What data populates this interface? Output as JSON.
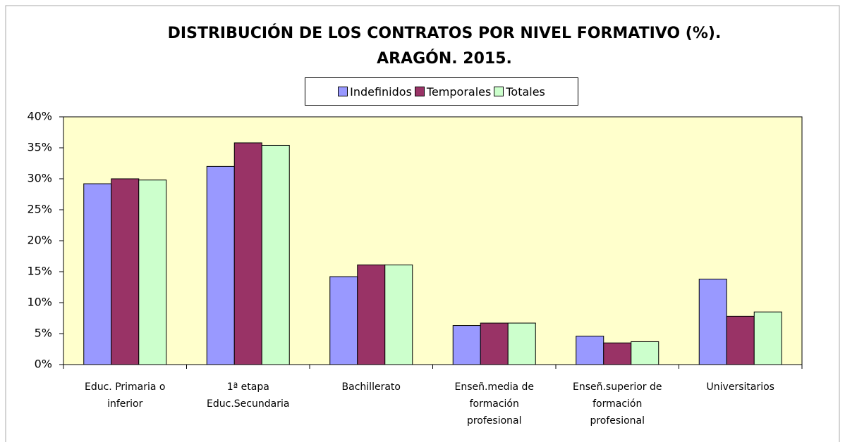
{
  "chart_data": {
    "type": "bar",
    "title": [
      "DISTRIBUCIÓN DE LOS CONTRATOS POR NIVEL FORMATIVO (%).",
      "ARAGÓN. 2015."
    ],
    "categories": [
      "Educ. Primaria o inferior",
      "1ª etapa Educ.Secundaria",
      "Bachillerato",
      "Enseñ.media de formación profesional",
      "Enseñ.superior de formación profesional",
      "Universitarios"
    ],
    "series": [
      {
        "name": "Indefinidos",
        "color": "#9999ff",
        "values": [
          29.2,
          32.0,
          14.2,
          6.3,
          4.6,
          13.8
        ]
      },
      {
        "name": "Temporales",
        "color": "#993366",
        "values": [
          30.0,
          35.8,
          16.1,
          6.7,
          3.5,
          7.8
        ]
      },
      {
        "name": "Totales",
        "color": "#ccffcc",
        "values": [
          29.8,
          35.4,
          16.1,
          6.7,
          3.7,
          8.5
        ]
      }
    ],
    "ylim": [
      0,
      40
    ],
    "yticks": [
      {
        "value": 0,
        "label": "0%"
      },
      {
        "value": 5,
        "label": "5%"
      },
      {
        "value": 10,
        "label": "10%"
      },
      {
        "value": 15,
        "label": "15%"
      },
      {
        "value": 20,
        "label": "20%"
      },
      {
        "value": 25,
        "label": "25%"
      },
      {
        "value": 30,
        "label": "30%"
      },
      {
        "value": 35,
        "label": "35%"
      },
      {
        "value": 40,
        "label": "40%"
      }
    ],
    "legend": "top",
    "plot_background": "#ffffcc"
  }
}
